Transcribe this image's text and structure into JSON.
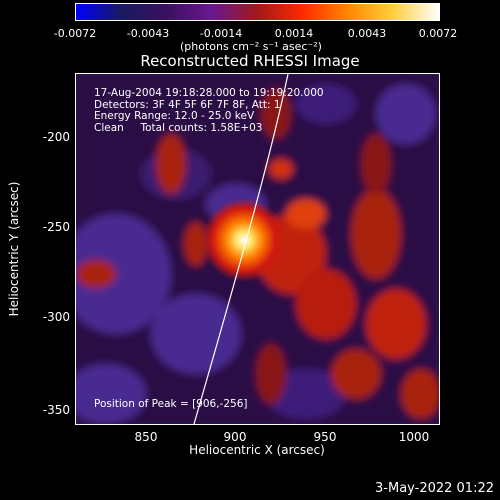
{
  "colorbar": {
    "ticks": [
      "-0.0072",
      "-0.0043",
      "-0.0014",
      "0.0014",
      "0.0043",
      "0.0072"
    ],
    "units": "(photons cm⁻² s⁻¹ asec⁻²)",
    "gradient_colors": [
      "#0000ff",
      "#1a1a60",
      "#3a1060",
      "#6a1890",
      "#a01a1a",
      "#ff2a00",
      "#ff8800",
      "#ffd040",
      "#ffffff"
    ]
  },
  "plot": {
    "title": "Reconstructed RHESSI Image",
    "info_lines": [
      "17-Aug-2004 19:18:28.000 to 19:19:20.000",
      "Detectors: 3F 4F 5F 6F 7F 8F, Att: 1",
      "Energy Range: 12.0 - 25.0 keV",
      "Clean     Total counts: 1.58E+03"
    ],
    "peak_label": "Position of Peak = [906,-256]",
    "xlabel": "Heliocentric X (arcsec)",
    "ylabel": "Heliocentric Y (arcsec)",
    "xticks": [
      "850",
      "900",
      "950",
      "1000"
    ],
    "yticks": [
      "-200",
      "-250",
      "-300",
      "-350"
    ],
    "limb_color": "#ffffff"
  },
  "footer": {
    "date": "3-May-2022 01:22"
  }
}
